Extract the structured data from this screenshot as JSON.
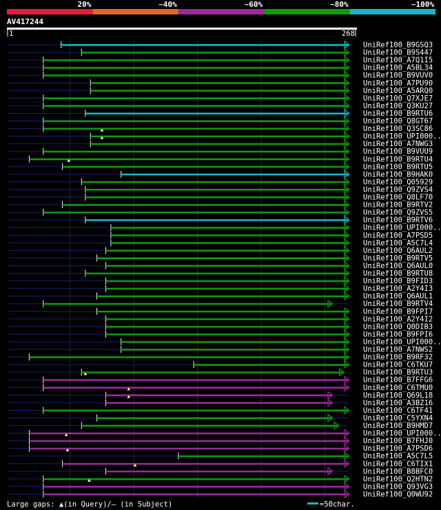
{
  "chart_data": {
    "type": "alignment-overview",
    "query_id": "AV417244",
    "query_start": 1,
    "query_end": 268,
    "scale_label": "=50char.",
    "footer_text": "Large gaps: ▲(in Query)/– (in Subject)",
    "identity_legend": [
      {
        "label": "20%",
        "color": "#e0203a"
      },
      {
        "label": "~40%",
        "color": "#e06a20"
      },
      {
        "label": "~60%",
        "color": "#9a2a98"
      },
      {
        "label": "~80%",
        "color": "#0f9a0f"
      },
      {
        "label": "~100%",
        "color": "#17b6c4"
      }
    ],
    "hits": [
      {
        "name": "UniRef100_B9GSQ3",
        "class": "c",
        "s": 43,
        "e": 268,
        "sv": "b",
        "qs": 1
      },
      {
        "name": "UniRef100_B9S447",
        "class": "g",
        "s": 59,
        "e": 268,
        "sv": "b",
        "qs": 1
      },
      {
        "name": "UniRef100_A7Q1I5",
        "class": "g",
        "s": 29,
        "e": 268,
        "sv": "b",
        "qs": 1
      },
      {
        "name": "UniRef100_A5BL34",
        "class": "g",
        "s": 29,
        "e": 268,
        "sv": "b",
        "qs": 1
      },
      {
        "name": "UniRef100_B9VUV0",
        "class": "g",
        "s": 29,
        "e": 268,
        "sv": "b",
        "qs": 1
      },
      {
        "name": "UniRef100_A7PU90",
        "class": "g",
        "s": 66,
        "e": 268,
        "sv": "b",
        "qs": 1
      },
      {
        "name": "UniRef100_A5ARQ0",
        "class": "g",
        "s": 66,
        "e": 268,
        "sv": "b",
        "qs": 1
      },
      {
        "name": "UniRef100_Q7XJE7",
        "class": "g",
        "s": 29,
        "e": 268,
        "sv": "b",
        "qs": 1
      },
      {
        "name": "UniRef100_Q3KU27",
        "class": "g",
        "s": 29,
        "e": 268,
        "sv": "b",
        "qs": 1
      },
      {
        "name": "UniRef100_B9RTU6",
        "class": "c",
        "s": 62,
        "e": 268,
        "sv": "b",
        "qs": 1
      },
      {
        "name": "UniRef100_Q8GT67",
        "class": "g",
        "s": 29,
        "e": 268,
        "sv": "b",
        "qs": 1
      },
      {
        "name": "UniRef100_Q3SC86",
        "class": "g",
        "s": 29,
        "e": 268,
        "sv": "b",
        "qs": 1
      },
      {
        "name": "UniRef100_UPI000..",
        "class": "g",
        "s": 66,
        "e": 268,
        "sv": "b",
        "qs": 1,
        "gap": 75
      },
      {
        "name": "UniRef100_A7NWG3",
        "class": "g",
        "s": 66,
        "e": 268,
        "sv": "b",
        "qs": 1,
        "gap": 75
      },
      {
        "name": "UniRef100_B9VUU9",
        "class": "g",
        "s": 29,
        "e": 268,
        "sv": "b",
        "qs": 1
      },
      {
        "name": "UniRef100_B9RTU4",
        "class": "g",
        "s": 18,
        "e": 268,
        "sv": "b",
        "qs": 1
      },
      {
        "name": "UniRef100_B9RTU5",
        "class": "g",
        "s": 44,
        "e": 268,
        "sv": "b",
        "qs": 1,
        "gap": 49
      },
      {
        "name": "UniRef100_B9HAK0",
        "class": "c",
        "s": 90,
        "e": 268,
        "sv": "b",
        "qs": 1
      },
      {
        "name": "UniRef100_Q05929",
        "class": "g",
        "s": 59,
        "e": 268,
        "sv": "b",
        "qs": 1
      },
      {
        "name": "UniRef100_Q9ZVS4",
        "class": "g",
        "s": 62,
        "e": 268,
        "sv": "b",
        "qs": 1
      },
      {
        "name": "UniRef100_Q8LF70",
        "class": "g",
        "s": 62,
        "e": 268,
        "sv": "b",
        "qs": 1
      },
      {
        "name": "UniRef100_B9RTV2",
        "class": "g",
        "s": 44,
        "e": 268,
        "sv": "b",
        "qs": 1
      },
      {
        "name": "UniRef100_Q9ZVS5",
        "class": "g",
        "s": 29,
        "e": 268,
        "sv": "b",
        "qs": 1
      },
      {
        "name": "UniRef100_B9RTV6",
        "class": "c",
        "s": 62,
        "e": 268,
        "sv": "b",
        "qs": 1
      },
      {
        "name": "UniRef100_UPI000..",
        "class": "g",
        "s": 82,
        "e": 268,
        "sv": "b",
        "qs": 1
      },
      {
        "name": "UniRef100_A7PSD5",
        "class": "g",
        "s": 82,
        "e": 268,
        "sv": "b",
        "qs": 1
      },
      {
        "name": "UniRef100_A5C7L4",
        "class": "g",
        "s": 82,
        "e": 268,
        "sv": "b",
        "qs": 1
      },
      {
        "name": "UniRef100_Q6AUL2",
        "class": "g",
        "s": 78,
        "e": 268,
        "sv": "b",
        "qs": 1
      },
      {
        "name": "UniRef100_B9RTV5",
        "class": "g",
        "s": 71,
        "e": 268,
        "sv": "b",
        "qs": 1
      },
      {
        "name": "UniRef100_Q6AUL0",
        "class": "g",
        "s": 78,
        "e": 268,
        "sv": "b",
        "qs": 1
      },
      {
        "name": "UniRef100_B9RTU8",
        "class": "g",
        "s": 62,
        "e": 268,
        "sv": "b",
        "qs": 1
      },
      {
        "name": "UniRef100_B9FID3",
        "class": "g",
        "s": 78,
        "e": 268,
        "sv": "b",
        "qs": 1
      },
      {
        "name": "UniRef100_A2Y4I3",
        "class": "g",
        "s": 78,
        "e": 268,
        "sv": "b",
        "qs": 1
      },
      {
        "name": "UniRef100_Q6AUL1",
        "class": "g",
        "s": 71,
        "e": 268,
        "sv": "b",
        "qs": 1
      },
      {
        "name": "UniRef100_B9RTV4",
        "class": "g",
        "s": 29,
        "e": 255,
        "sv": "b",
        "qs": 1
      },
      {
        "name": "UniRef100_B9FPI7",
        "class": "g",
        "s": 71,
        "e": 268,
        "sv": "b",
        "qs": 1
      },
      {
        "name": "UniRef100_A2Y4I2",
        "class": "g",
        "s": 78,
        "e": 268,
        "sv": "b",
        "qs": 1
      },
      {
        "name": "UniRef100_Q0DIB3",
        "class": "g",
        "s": 78,
        "e": 268,
        "sv": "b",
        "qs": 1
      },
      {
        "name": "UniRef100_B9FPI6",
        "class": "g",
        "s": 78,
        "e": 268,
        "sv": "b",
        "qs": 1
      },
      {
        "name": "UniRef100_UPI000..",
        "class": "g",
        "s": 90,
        "e": 268,
        "sv": "b",
        "qs": 1
      },
      {
        "name": "UniRef100_A7NWS2",
        "class": "g",
        "s": 90,
        "e": 268,
        "sv": "b",
        "qs": 1
      },
      {
        "name": "UniRef100_B9RF32",
        "class": "g",
        "s": 18,
        "e": 268,
        "sv": "b",
        "qs": 1
      },
      {
        "name": "UniRef100_C6TKU7",
        "class": "g",
        "s": 147,
        "e": 268,
        "sv": "b",
        "qs": 1
      },
      {
        "name": "UniRef100_B9RTU3",
        "class": "g",
        "s": 59,
        "e": 264,
        "sv": "b",
        "qs": 1
      },
      {
        "name": "UniRef100_B7FFG6",
        "class": "p",
        "s": 29,
        "e": 268,
        "sv": "b",
        "qs": 1,
        "gap": 62
      },
      {
        "name": "UniRef100_C6TMU0",
        "class": "p",
        "s": 29,
        "e": 268,
        "sv": "b",
        "qs": 1
      },
      {
        "name": "UniRef100_Q69L18",
        "class": "p",
        "s": 78,
        "e": 255,
        "sv": "b",
        "qs": 1,
        "gap": 96
      },
      {
        "name": "UniRef100_A3BZ16",
        "class": "p",
        "s": 78,
        "e": 255,
        "sv": "b",
        "qs": 1,
        "gap": 96
      },
      {
        "name": "UniRef100_C6TF41",
        "class": "g",
        "s": 29,
        "e": 268,
        "sv": "b",
        "qs": 1
      },
      {
        "name": "UniRef100_C5YXN4",
        "class": "g",
        "s": 71,
        "e": 255,
        "sv": "b",
        "qs": 1
      },
      {
        "name": "UniRef100_B9HMD7",
        "class": "g",
        "s": 59,
        "e": 260,
        "sv": "b",
        "qs": 1
      },
      {
        "name": "UniRef100_UPI000..",
        "class": "p",
        "s": 18,
        "e": 268,
        "sv": "b",
        "qs": 1
      },
      {
        "name": "UniRef100_B7FHJ0",
        "class": "p",
        "s": 18,
        "e": 268,
        "sv": "b",
        "qs": 1,
        "gap": 47
      },
      {
        "name": "UniRef100_A7PSD6",
        "class": "p",
        "s": 18,
        "e": 268,
        "sv": "b",
        "qs": 1
      },
      {
        "name": "UniRef100_A5C7L5",
        "class": "g",
        "s": 135,
        "e": 268,
        "sv": "b",
        "qs": 1,
        "gap": 48
      },
      {
        "name": "UniRef100_C6TIX1",
        "class": "p",
        "s": 44,
        "e": 268,
        "sv": "b",
        "qs": 1
      },
      {
        "name": "UniRef100_B8BFC0",
        "class": "p",
        "s": 78,
        "e": 255,
        "sv": "b",
        "qs": 1,
        "gap": 101
      },
      {
        "name": "UniRef100_Q2HTN2",
        "class": "g",
        "s": 29,
        "e": 268,
        "sv": "b",
        "qs": 1
      },
      {
        "name": "UniRef100_Q93VG3",
        "class": "p",
        "s": 29,
        "e": 268,
        "sv": "b",
        "qs": 1,
        "gap": 65
      },
      {
        "name": "UniRef100_Q0WU92",
        "class": "p",
        "s": 29,
        "e": 268,
        "sv": "b",
        "qs": 1
      }
    ]
  }
}
